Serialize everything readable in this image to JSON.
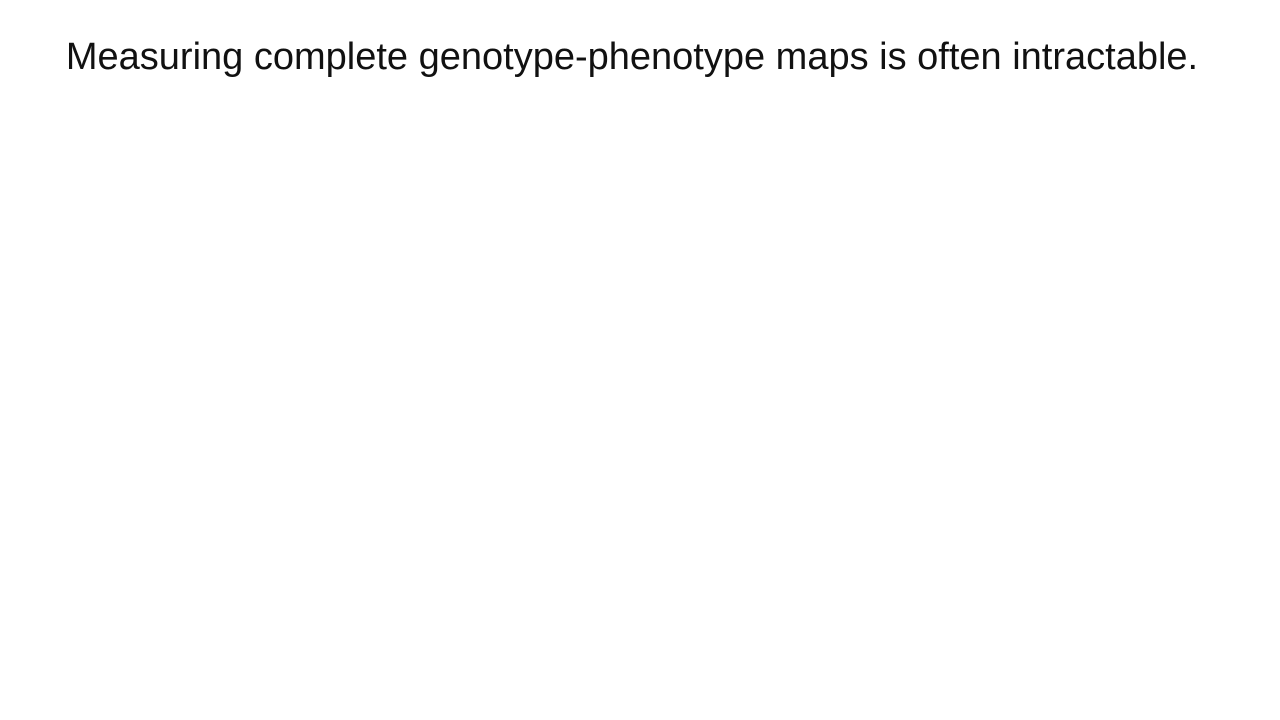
{
  "slide": {
    "title": "Measuring complete genotype-phenotype maps is often intractable."
  }
}
